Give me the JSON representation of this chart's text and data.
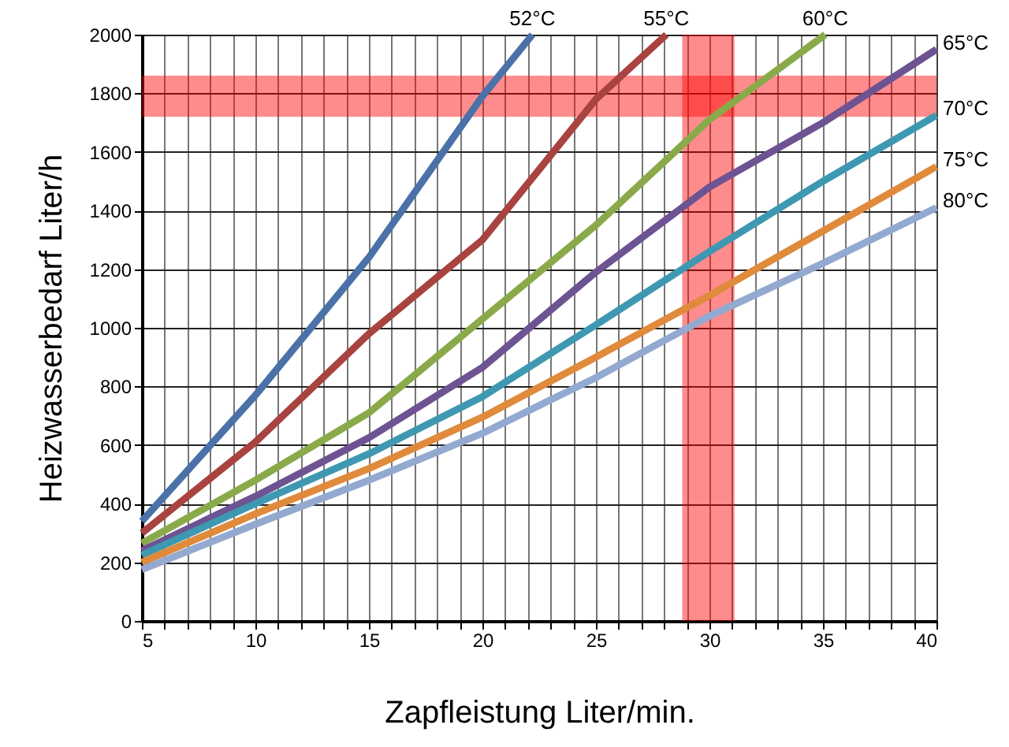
{
  "chart_data": {
    "type": "line",
    "xlabel": "Zapfleistung Liter/min.",
    "ylabel": "Heizwasserbedarf Liter/h",
    "xlim": [
      5,
      40
    ],
    "ylim": [
      0,
      2000
    ],
    "xticks": [
      5,
      {
        "value": 6,
        "label": null
      },
      {
        "value": 7,
        "label": null
      },
      {
        "value": 8,
        "label": null
      },
      {
        "value": 9,
        "label": null
      },
      10,
      {
        "value": 11,
        "label": null
      },
      {
        "value": 12,
        "label": null
      },
      {
        "value": 13,
        "label": null
      },
      {
        "value": 14,
        "label": null
      },
      15,
      {
        "value": 16,
        "label": null
      },
      {
        "value": 17,
        "label": null
      },
      {
        "value": 18,
        "label": null
      },
      {
        "value": 19,
        "label": null
      },
      20,
      {
        "value": 21,
        "label": null
      },
      {
        "value": 22,
        "label": null
      },
      {
        "value": 23,
        "label": null
      },
      {
        "value": 24,
        "label": null
      },
      25,
      {
        "value": 26,
        "label": null
      },
      {
        "value": 27,
        "label": null
      },
      {
        "value": 28,
        "label": null
      },
      {
        "value": 29,
        "label": null
      },
      30,
      {
        "value": 31,
        "label": null
      },
      {
        "value": 32,
        "label": null
      },
      {
        "value": 33,
        "label": null
      },
      {
        "value": 34,
        "label": null
      },
      35,
      {
        "value": 36,
        "label": null
      },
      {
        "value": 37,
        "label": null
      },
      {
        "value": 38,
        "label": null
      },
      {
        "value": 39,
        "label": null
      },
      40
    ],
    "yticks": [
      0,
      200,
      400,
      600,
      800,
      1000,
      1200,
      1400,
      1600,
      1800,
      2000
    ],
    "grid": true,
    "line_style": "solid",
    "series": [
      {
        "name": "52°C",
        "color": "#4a72a8",
        "x": [
          5,
          10,
          15,
          20,
          22.2
        ],
        "values": [
          340,
          770,
          1240,
          1790,
          2000
        ]
      },
      {
        "name": "55°C",
        "color": "#a84340",
        "x": [
          5,
          10,
          15,
          20,
          25,
          28.1
        ],
        "values": [
          300,
          610,
          980,
          1300,
          1780,
          2000
        ]
      },
      {
        "name": "60°C",
        "color": "#8aaa4a",
        "x": [
          5,
          10,
          15,
          20,
          25,
          30,
          35.1
        ],
        "values": [
          265,
          480,
          710,
          1030,
          1350,
          1710,
          2000
        ]
      },
      {
        "name": "65°C",
        "color": "#6d5392",
        "x": [
          5,
          10,
          15,
          20,
          25,
          30,
          35,
          40
        ],
        "values": [
          240,
          425,
          625,
          865,
          1190,
          1480,
          1700,
          1950
        ]
      },
      {
        "name": "70°C",
        "color": "#3f98b1",
        "x": [
          5,
          10,
          15,
          20,
          25,
          30,
          35,
          40
        ],
        "values": [
          225,
          400,
          570,
          765,
          1010,
          1260,
          1500,
          1725
        ]
      },
      {
        "name": "75°C",
        "color": "#e08a3c",
        "x": [
          5,
          10,
          15,
          20,
          25,
          30,
          35,
          40
        ],
        "values": [
          200,
          365,
          520,
          695,
          900,
          1110,
          1330,
          1550
        ]
      },
      {
        "name": "80°C",
        "color": "#93a9d0",
        "x": [
          5,
          10,
          15,
          20,
          25,
          30,
          35,
          40
        ],
        "values": [
          175,
          330,
          480,
          640,
          830,
          1040,
          1220,
          1410
        ]
      }
    ],
    "bands": [
      {
        "axis": "y",
        "from": 1720,
        "to": 1860,
        "color": "#ff0000"
      },
      {
        "axis": "x",
        "from": 28.8,
        "to": 31.1,
        "color": "#ff0000"
      }
    ]
  }
}
